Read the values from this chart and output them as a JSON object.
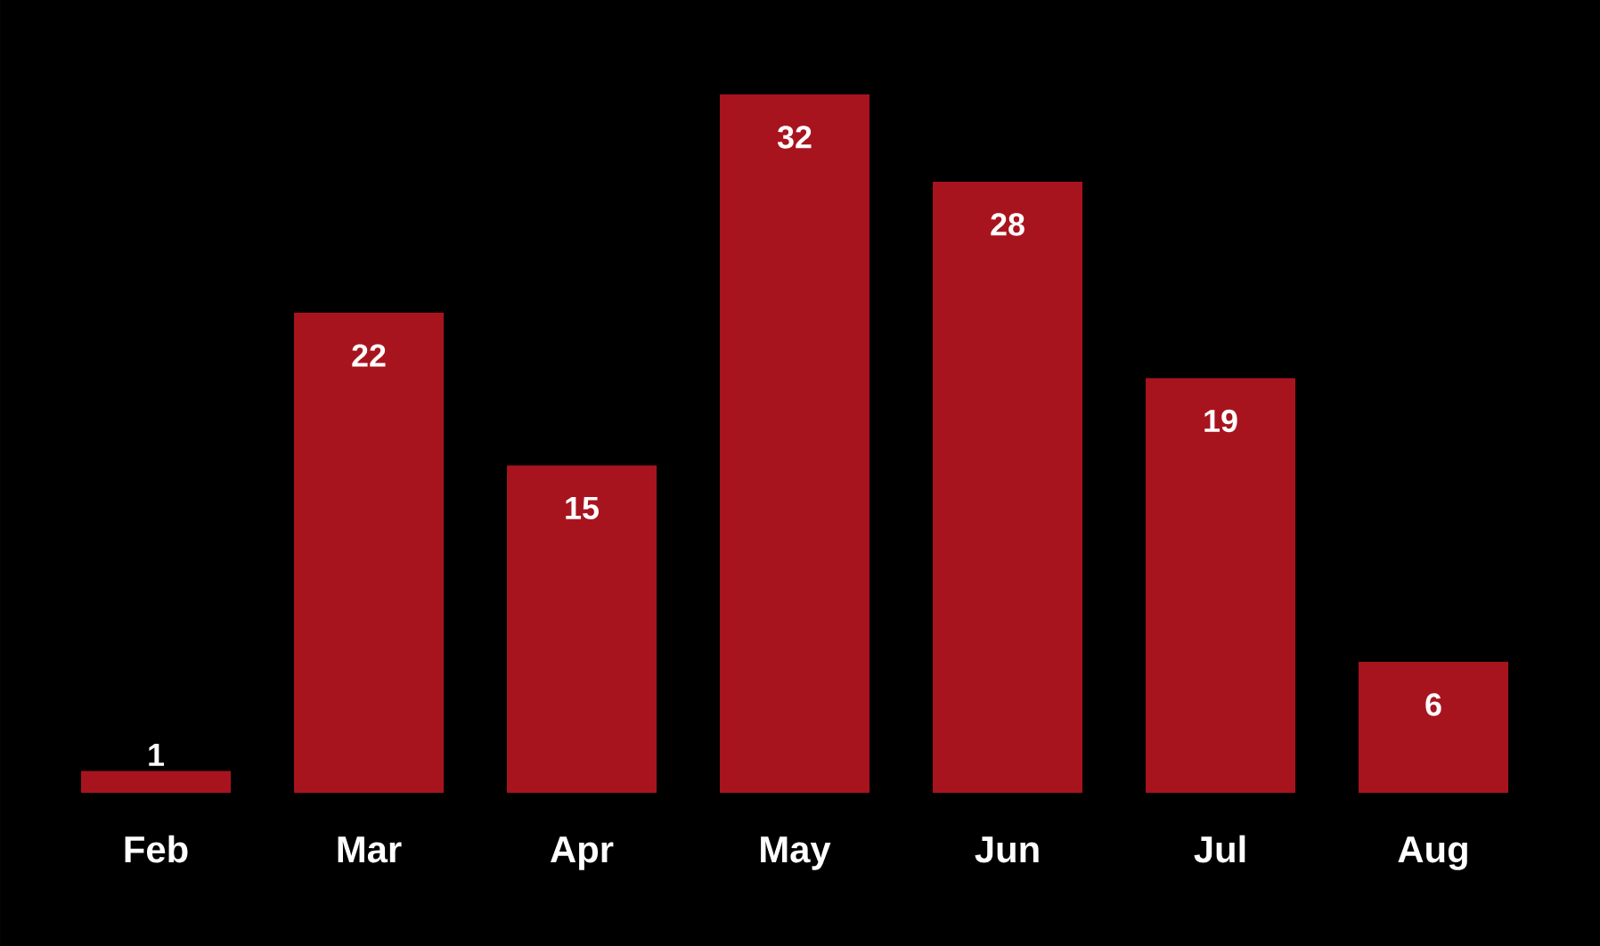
{
  "chart_data": {
    "type": "bar",
    "categories": [
      "Feb",
      "Mar",
      "Apr",
      "May",
      "Jun",
      "Jul",
      "Aug"
    ],
    "values": [
      1,
      22,
      15,
      32,
      28,
      19,
      6
    ],
    "color": "#a8141e",
    "data_labels": true
  }
}
